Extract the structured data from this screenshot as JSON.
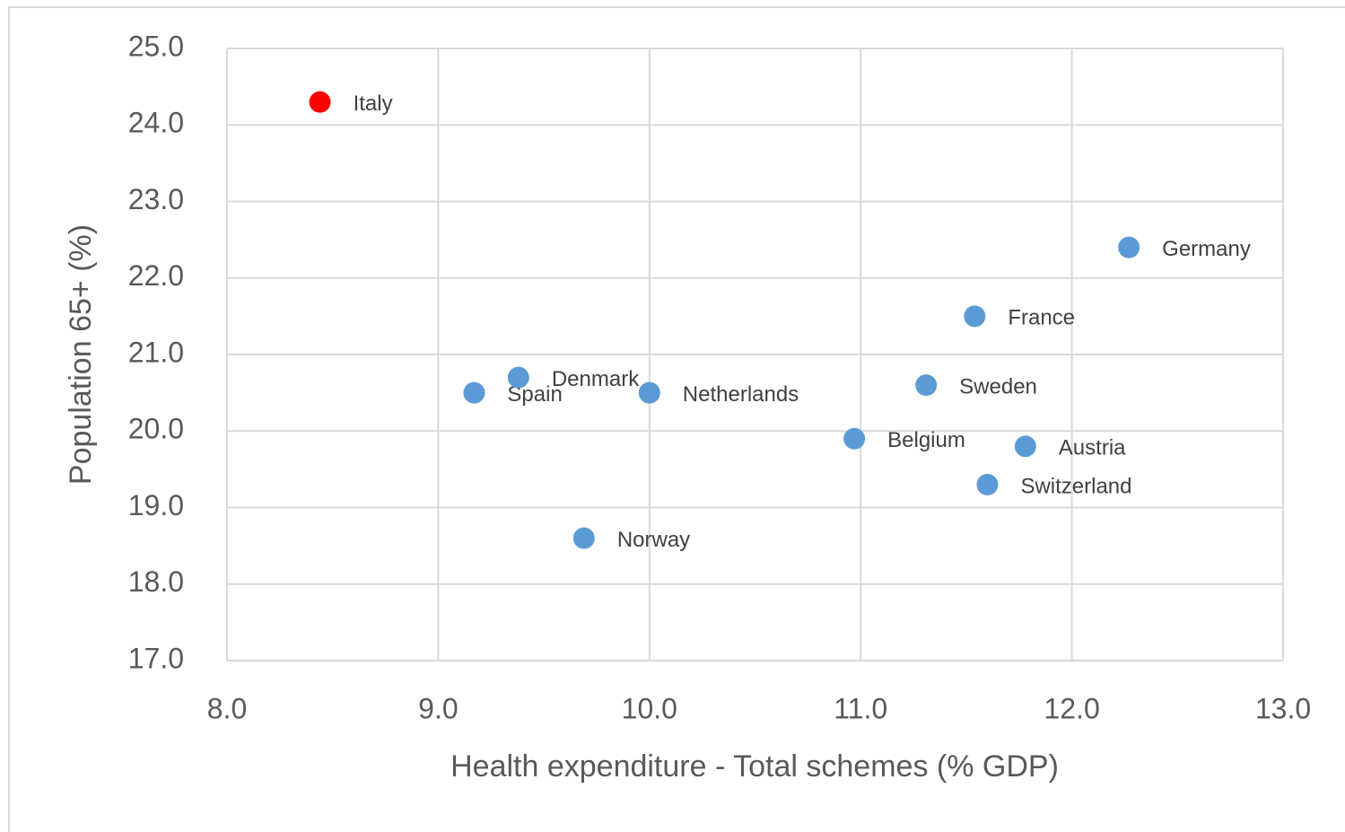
{
  "chart_data": {
    "type": "scatter",
    "x_label": "Health expenditure - Total schemes (% GDP)",
    "y_label": "Population 65+ (%)",
    "point_labels": [
      "Italy",
      "Spain",
      "Denmark",
      "Netherlands",
      "Norway",
      "Belgium",
      "Sweden",
      "France",
      "Germany",
      "Austria",
      "Switzerland"
    ],
    "x": [
      8.44,
      9.17,
      9.38,
      10.0,
      9.69,
      10.97,
      11.31,
      11.54,
      12.27,
      11.78,
      11.6
    ],
    "values": [
      24.3,
      20.5,
      20.7,
      20.5,
      18.6,
      19.9,
      20.6,
      21.5,
      22.4,
      19.8,
      19.3
    ],
    "colors": [
      "#ff0000",
      "#5b9bd5",
      "#5b9bd5",
      "#5b9bd5",
      "#5b9bd5",
      "#5b9bd5",
      "#5b9bd5",
      "#5b9bd5",
      "#5b9bd5",
      "#5b9bd5",
      "#5b9bd5"
    ],
    "xlim": [
      8,
      13
    ],
    "xticks": [
      {
        "value": 8,
        "label": "8.0"
      },
      {
        "value": 9,
        "label": "9.0"
      },
      {
        "value": 10,
        "label": "10.0"
      },
      {
        "value": 11,
        "label": "11.0"
      },
      {
        "value": 12,
        "label": "12.0"
      },
      {
        "value": 13,
        "label": "13.0"
      }
    ],
    "ylim": [
      17,
      25
    ],
    "yticks": [
      {
        "value": 17,
        "label": "17.0"
      },
      {
        "value": 18,
        "label": "18.0"
      },
      {
        "value": 19,
        "label": "19.0"
      },
      {
        "value": 20,
        "label": "20.0"
      },
      {
        "value": 21,
        "label": "21.0"
      },
      {
        "value": 22,
        "label": "22.0"
      },
      {
        "value": 23,
        "label": "23.0"
      },
      {
        "value": 24,
        "label": "24.0"
      },
      {
        "value": 25,
        "label": "25.0"
      }
    ],
    "grid": true
  }
}
